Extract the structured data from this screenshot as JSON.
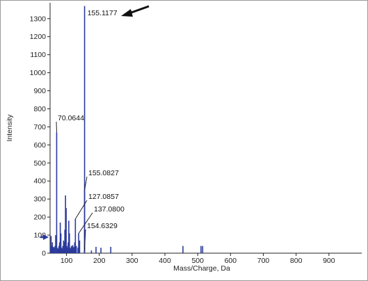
{
  "chart_data": {
    "type": "bar",
    "xlabel": "Mass/Charge, Da",
    "ylabel": "Intensity",
    "xlim": [
      50,
      1000
    ],
    "ylim": [
      0,
      1380
    ],
    "x_ticks": [
      100,
      200,
      300,
      400,
      500,
      600,
      700,
      800,
      900
    ],
    "y_ticks": [
      0,
      100,
      200,
      300,
      400,
      500,
      600,
      700,
      800,
      900,
      1000,
      1100,
      1200,
      1300
    ],
    "series_color": "#2b3a9c",
    "peaks": [
      {
        "mz": 51,
        "intensity": 35
      },
      {
        "mz": 53,
        "intensity": 95
      },
      {
        "mz": 55,
        "intensity": 40
      },
      {
        "mz": 57,
        "intensity": 60
      },
      {
        "mz": 60,
        "intensity": 35
      },
      {
        "mz": 62,
        "intensity": 30
      },
      {
        "mz": 65,
        "intensity": 40
      },
      {
        "mz": 67,
        "intensity": 100
      },
      {
        "mz": 70.0644,
        "intensity": 670
      },
      {
        "mz": 72,
        "intensity": 30
      },
      {
        "mz": 74,
        "intensity": 25
      },
      {
        "mz": 77,
        "intensity": 40
      },
      {
        "mz": 79,
        "intensity": 60
      },
      {
        "mz": 81,
        "intensity": 170
      },
      {
        "mz": 83,
        "intensity": 110
      },
      {
        "mz": 85,
        "intensity": 30
      },
      {
        "mz": 87,
        "intensity": 25
      },
      {
        "mz": 89,
        "intensity": 40
      },
      {
        "mz": 91,
        "intensity": 70
      },
      {
        "mz": 93,
        "intensity": 60
      },
      {
        "mz": 95,
        "intensity": 130
      },
      {
        "mz": 97,
        "intensity": 320
      },
      {
        "mz": 99,
        "intensity": 250
      },
      {
        "mz": 101,
        "intensity": 40
      },
      {
        "mz": 103,
        "intensity": 30
      },
      {
        "mz": 105,
        "intensity": 60
      },
      {
        "mz": 107,
        "intensity": 180
      },
      {
        "mz": 109,
        "intensity": 110
      },
      {
        "mz": 111,
        "intensity": 30
      },
      {
        "mz": 113,
        "intensity": 25
      },
      {
        "mz": 115,
        "intensity": 40
      },
      {
        "mz": 117,
        "intensity": 35
      },
      {
        "mz": 119,
        "intensity": 45
      },
      {
        "mz": 121,
        "intensity": 30
      },
      {
        "mz": 123,
        "intensity": 35
      },
      {
        "mz": 125,
        "intensity": 60
      },
      {
        "mz": 127.0857,
        "intensity": 190
      },
      {
        "mz": 130,
        "intensity": 40
      },
      {
        "mz": 135,
        "intensity": 30
      },
      {
        "mz": 137.08,
        "intensity": 110
      },
      {
        "mz": 139,
        "intensity": 45
      },
      {
        "mz": 140,
        "intensity": 70
      },
      {
        "mz": 154.6329,
        "intensity": 15
      },
      {
        "mz": 155.0827,
        "intensity": 350
      },
      {
        "mz": 155.1177,
        "intensity": 1370
      },
      {
        "mz": 176,
        "intensity": 15
      },
      {
        "mz": 190,
        "intensity": 35
      },
      {
        "mz": 205,
        "intensity": 30
      },
      {
        "mz": 235,
        "intensity": 35
      },
      {
        "mz": 455,
        "intensity": 40
      },
      {
        "mz": 510,
        "intensity": 40
      },
      {
        "mz": 515,
        "intensity": 40
      }
    ],
    "annotations": [
      {
        "label": "155.1177",
        "mz": 155.1177,
        "intensity": 1370
      },
      {
        "label": "70.0644",
        "mz": 70.0644,
        "intensity": 670
      },
      {
        "label": "155.0827",
        "mz": 155.0827,
        "intensity": 350
      },
      {
        "label": "127.0857",
        "mz": 127.0857,
        "intensity": 190
      },
      {
        "label": "137.0800",
        "mz": 137.08,
        "intensity": 110
      },
      {
        "label": "154.6329",
        "mz": 154.6329,
        "intensity": 15
      }
    ]
  }
}
